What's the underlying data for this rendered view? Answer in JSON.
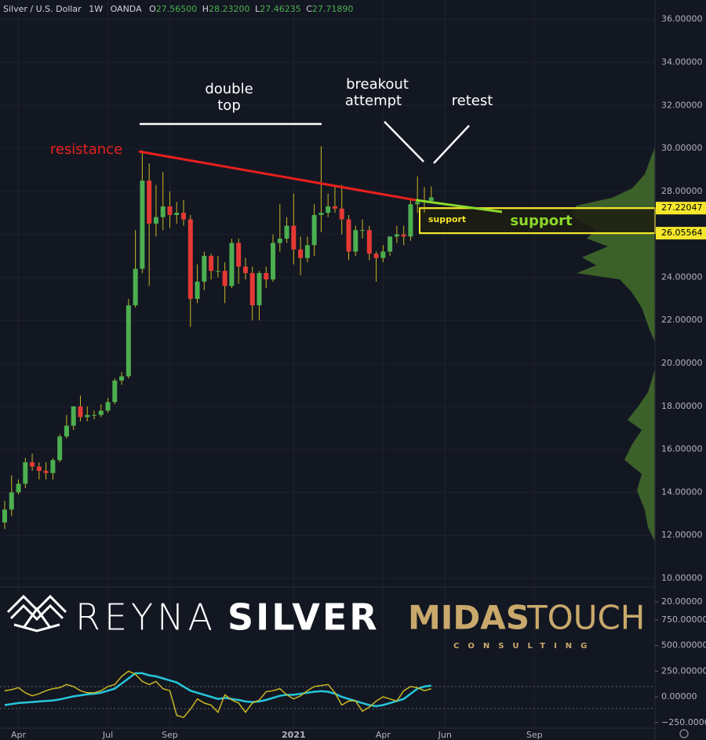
{
  "chart_data": {
    "type": "candlestick",
    "header": {
      "symbol": "Silver / U.S. Dollar",
      "interval": "1W",
      "source": "OANDA",
      "ohlc": [
        {
          "key": "O",
          "value": "27.56500"
        },
        {
          "key": "H",
          "value": "28.23200"
        },
        {
          "key": "L",
          "value": "27.46235"
        },
        {
          "key": "C",
          "value": "27.71890"
        }
      ]
    },
    "categories": [
      null,
      null,
      "Apr",
      null,
      null,
      null,
      null,
      null,
      null,
      null,
      null,
      null,
      null,
      null,
      null,
      "Jul",
      null,
      null,
      null,
      null,
      null,
      null,
      null,
      null,
      "Sep",
      null,
      null,
      null,
      null,
      null,
      null,
      null,
      null,
      null,
      null,
      null,
      null,
      null,
      null,
      null,
      null,
      null,
      "2021",
      null,
      null,
      null,
      null,
      null,
      null,
      null,
      null,
      null,
      null,
      null,
      null,
      "Apr",
      null,
      null,
      null,
      null,
      null,
      null,
      null,
      null,
      "Jun",
      null,
      null,
      null,
      null,
      null,
      null,
      null,
      null,
      null,
      null,
      null,
      null,
      "Sep",
      null,
      null,
      null,
      null,
      null,
      null,
      null,
      null,
      null,
      null,
      null,
      null,
      null,
      null,
      null,
      null,
      null
    ],
    "open": [
      12.6,
      13.2,
      14.0,
      14.4,
      15.4,
      15.2,
      15.0,
      14.9,
      15.5,
      16.6,
      17.1,
      18.0,
      17.5,
      17.6,
      17.6,
      17.8,
      18.2,
      19.2,
      19.4,
      22.7,
      24.4,
      28.5,
      26.5,
      26.8,
      27.3,
      26.9,
      27.0,
      26.7,
      23.0,
      23.8,
      25.0,
      24.3,
      24.3,
      23.6,
      25.6,
      24.5,
      24.2,
      22.7,
      24.2,
      23.9,
      25.6,
      25.8,
      26.4,
      25.3,
      24.9,
      25.5,
      26.9,
      27.0,
      27.3,
      27.2,
      26.7,
      25.2,
      26.2,
      26.2,
      25.1,
      24.9,
      25.2,
      25.9,
      26.0,
      25.9,
      27.4,
      27.5,
      27.565,
      null,
      null,
      null,
      null,
      null,
      null,
      null,
      null,
      null,
      null,
      null,
      null,
      null,
      null,
      null,
      null,
      null,
      null,
      null,
      null,
      null,
      null,
      null,
      null,
      null,
      null,
      null,
      null,
      null,
      null,
      null,
      null
    ],
    "high": [
      13.6,
      14.8,
      14.6,
      15.6,
      15.8,
      15.4,
      15.4,
      15.6,
      16.7,
      17.6,
      18.0,
      18.5,
      18.0,
      17.8,
      18.1,
      18.4,
      19.3,
      19.6,
      23.0,
      26.2,
      29.9,
      29.3,
      28.3,
      28.9,
      28.0,
      27.5,
      27.6,
      26.9,
      24.6,
      25.2,
      25.1,
      25.0,
      24.7,
      25.8,
      25.8,
      24.9,
      24.5,
      24.3,
      24.5,
      26.0,
      27.4,
      26.8,
      27.9,
      25.9,
      25.9,
      27.4,
      30.1,
      27.9,
      28.3,
      28.3,
      26.9,
      26.4,
      26.7,
      26.4,
      25.2,
      25.5,
      25.9,
      26.4,
      26.4,
      27.6,
      28.7,
      28.2,
      28.232,
      null,
      null,
      null,
      null,
      null,
      null,
      null,
      null,
      null,
      null,
      null,
      null,
      null,
      null,
      null,
      null,
      null,
      null,
      null,
      null,
      null,
      null,
      null,
      null,
      null,
      null,
      null,
      null,
      null,
      null,
      null,
      null
    ],
    "low": [
      12.3,
      12.9,
      13.9,
      14.2,
      15.0,
      14.6,
      14.6,
      14.6,
      15.4,
      16.5,
      16.9,
      17.3,
      17.3,
      17.4,
      17.5,
      17.7,
      18.1,
      19.0,
      19.3,
      22.6,
      24.2,
      23.6,
      25.9,
      26.2,
      26.3,
      26.5,
      26.4,
      21.7,
      22.8,
      23.4,
      23.9,
      24.0,
      22.8,
      23.5,
      23.7,
      23.9,
      22.0,
      22.0,
      23.5,
      23.8,
      25.2,
      25.6,
      24.6,
      24.1,
      24.7,
      25.0,
      26.1,
      26.8,
      27.0,
      26.0,
      24.8,
      25.0,
      25.8,
      24.8,
      23.8,
      24.7,
      25.0,
      25.6,
      25.5,
      25.7,
      27.0,
      27.0,
      27.46235,
      null,
      null,
      null,
      null,
      null,
      null,
      null,
      null,
      null,
      null,
      null,
      null,
      null,
      null,
      null,
      null,
      null,
      null,
      null,
      null,
      null,
      null,
      null,
      null,
      null,
      null,
      null,
      null,
      null,
      null,
      null,
      null
    ],
    "close": [
      13.2,
      14.0,
      14.4,
      15.4,
      15.2,
      15.0,
      14.9,
      15.5,
      16.6,
      17.1,
      18.0,
      17.5,
      17.6,
      17.6,
      17.8,
      18.2,
      19.2,
      19.4,
      22.7,
      24.4,
      28.5,
      26.5,
      26.8,
      27.3,
      26.9,
      27.0,
      26.7,
      23.0,
      23.8,
      25.0,
      24.3,
      24.3,
      23.6,
      25.6,
      24.5,
      24.2,
      22.7,
      24.2,
      23.9,
      25.6,
      25.8,
      26.4,
      25.3,
      24.9,
      25.5,
      26.9,
      27.0,
      27.3,
      27.2,
      26.7,
      25.2,
      26.2,
      26.2,
      25.1,
      24.9,
      25.2,
      25.9,
      26.0,
      25.9,
      27.4,
      27.5,
      27.565,
      27.7189,
      null,
      null,
      null,
      null,
      null,
      null,
      null,
      null,
      null,
      null,
      null,
      null,
      null,
      null,
      null,
      null,
      null,
      null,
      null,
      null,
      null,
      null,
      null,
      null,
      null,
      null,
      null,
      null,
      null,
      null,
      null,
      null
    ],
    "up_color": "#4caf50",
    "down_color": "#e53935",
    "ylim": [
      9.6,
      36.9
    ],
    "yticks": [
      {
        "value": 10,
        "label": "10.00000"
      },
      {
        "value": 12,
        "label": "12.00000"
      },
      {
        "value": 14,
        "label": "14.00000"
      },
      {
        "value": 16,
        "label": "16.00000"
      },
      {
        "value": 18,
        "label": "18.00000"
      },
      {
        "value": 20,
        "label": "20.00000"
      },
      {
        "value": 22,
        "label": "22.00000"
      },
      {
        "value": 24,
        "label": "24.00000"
      },
      {
        "value": 26,
        "label": "26.00000"
      },
      {
        "value": 28,
        "label": "28.00000"
      },
      {
        "value": 30,
        "label": "30.00000"
      },
      {
        "value": 32,
        "label": "32.00000"
      },
      {
        "value": 34,
        "label": "34.00000"
      },
      {
        "value": 36,
        "label": "36.00000"
      }
    ],
    "grid": true,
    "levels": [
      27.22047,
      26.05564
    ],
    "level_color": "#f5e72b",
    "pane2_yticks": [
      {
        "value": 20,
        "label": "20.00000"
      }
    ],
    "indicator": {
      "ylim": [
        -420,
        1070
      ],
      "yticks": [
        {
          "value": 750,
          "label": "750.00000"
        },
        {
          "value": 500,
          "label": "500.00000"
        },
        {
          "value": 250,
          "label": "250.00000"
        },
        {
          "value": 0,
          "label": "0.00000"
        },
        {
          "value": -250,
          "label": "−250.00000"
        }
      ],
      "series": [
        {
          "color": "#26c6da",
          "values": [
            -80,
            -70,
            -60,
            -55,
            -50,
            -45,
            -40,
            -35,
            -25,
            -10,
            5,
            15,
            25,
            30,
            40,
            60,
            80,
            130,
            180,
            230,
            230,
            210,
            200,
            180,
            160,
            140,
            100,
            60,
            40,
            20,
            0,
            -20,
            -10,
            -20,
            -30,
            -45,
            -50,
            -45,
            -30,
            -10,
            10,
            20,
            20,
            30,
            40,
            50,
            55,
            50,
            30,
            0,
            -20,
            -40,
            -60,
            -80,
            -90,
            -80,
            -60,
            -40,
            -20,
            30,
            80,
            100,
            110,
            null,
            null,
            null,
            null,
            null,
            null,
            null,
            null,
            null,
            null,
            null,
            null,
            null,
            null,
            null,
            null,
            null,
            null,
            null,
            null,
            null,
            null,
            null,
            null,
            null,
            null,
            null,
            null,
            null,
            null,
            null,
            null
          ]
        },
        {
          "color": "#c9b622",
          "values": [
            60,
            70,
            90,
            40,
            10,
            30,
            60,
            80,
            90,
            120,
            100,
            60,
            40,
            40,
            60,
            100,
            120,
            200,
            250,
            220,
            150,
            120,
            150,
            80,
            60,
            -180,
            -200,
            -120,
            -20,
            -60,
            -80,
            -150,
            20,
            -30,
            -60,
            -150,
            -60,
            -30,
            50,
            60,
            80,
            20,
            -20,
            10,
            60,
            100,
            110,
            120,
            40,
            -80,
            -40,
            -40,
            -140,
            -100,
            -40,
            0,
            -20,
            -40,
            60,
            100,
            90,
            60,
            80,
            null,
            null,
            null,
            null,
            null,
            null,
            null,
            null,
            null,
            null,
            null,
            null,
            null,
            null,
            null,
            null,
            null,
            null,
            null,
            null,
            null,
            null,
            null,
            null,
            null,
            null,
            null,
            null,
            null,
            null,
            null,
            null
          ]
        }
      ]
    },
    "annotations": {
      "double_top": [
        "double",
        "top"
      ],
      "breakout": [
        "breakout",
        "attempt"
      ],
      "retest": "retest",
      "resistance": "resistance",
      "support_box": "support",
      "support_line": "support"
    },
    "branding": {
      "reyna": "REYNA",
      "silver": "SILVER",
      "midas": "MIDAS",
      "touch": "TOUCH",
      "consulting": "CONSULTING"
    }
  }
}
